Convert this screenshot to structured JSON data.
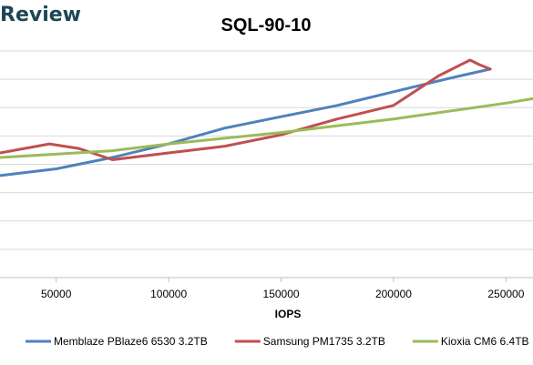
{
  "header": {
    "brand": "Review"
  },
  "chart_data": {
    "type": "line",
    "title": "SQL-90-10",
    "xlabel": "IOPS",
    "ylabel": "",
    "xlim": [
      25000,
      262000
    ],
    "ylim": [
      0,
      10
    ],
    "x_ticks": [
      50000,
      100000,
      150000,
      200000,
      250000
    ],
    "x_tick_labels": [
      "50000",
      "100000",
      "150000",
      "200000",
      "250000"
    ],
    "grid": "horizontal",
    "legend_position": "bottom",
    "colors": {
      "grid": "#d9d9d9",
      "axis": "#bfbfbf"
    },
    "series": [
      {
        "name": "Memblaze PBlaze6 6530 3.2TB",
        "color": "#4f81bd",
        "points": [
          [
            25000,
            4.5
          ],
          [
            50000,
            4.8
          ],
          [
            75000,
            5.3
          ],
          [
            100000,
            5.9
          ],
          [
            125000,
            6.6
          ],
          [
            150000,
            7.1
          ],
          [
            175000,
            7.6
          ],
          [
            200000,
            8.2
          ],
          [
            225000,
            8.8
          ],
          [
            243000,
            9.2
          ]
        ]
      },
      {
        "name": "Samsung PM1735 3.2TB",
        "color": "#c0504d",
        "points": [
          [
            25000,
            5.5
          ],
          [
            47000,
            5.9
          ],
          [
            60000,
            5.7
          ],
          [
            75000,
            5.2
          ],
          [
            100000,
            5.5
          ],
          [
            125000,
            5.8
          ],
          [
            150000,
            6.3
          ],
          [
            175000,
            7.0
          ],
          [
            200000,
            7.6
          ],
          [
            220000,
            8.9
          ],
          [
            234000,
            9.6
          ],
          [
            238000,
            9.4
          ],
          [
            243000,
            9.2
          ]
        ]
      },
      {
        "name": "Kioxia CM6 6.4TB",
        "color": "#9bbb59",
        "points": [
          [
            25000,
            5.3
          ],
          [
            75000,
            5.6
          ],
          [
            100000,
            5.9
          ],
          [
            150000,
            6.4
          ],
          [
            200000,
            7.0
          ],
          [
            250000,
            7.7
          ],
          [
            262000,
            7.9
          ]
        ]
      }
    ]
  }
}
